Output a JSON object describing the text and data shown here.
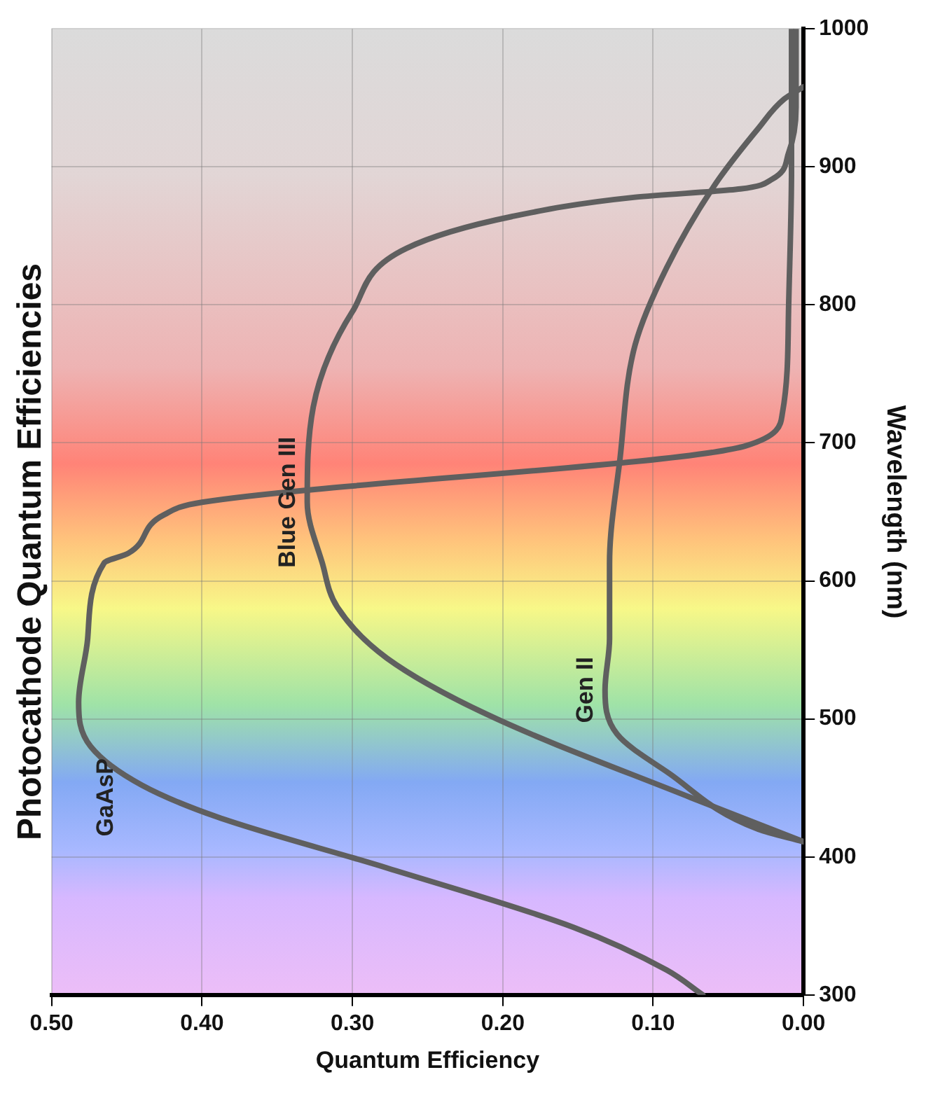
{
  "chart_data": {
    "type": "line",
    "title": "Photocathode Quantum Efficiencies",
    "xlabel": "Quantum Efficiency",
    "ylabel": "Wavelength (nm)",
    "xlim": [
      0.5,
      0
    ],
    "xticks": [
      {
        "value": 0.5,
        "label": "0.50"
      },
      {
        "value": 0.4,
        "label": "0.40"
      },
      {
        "value": 0.3,
        "label": "0.30"
      },
      {
        "value": 0.2,
        "label": "0.20"
      },
      {
        "value": 0.1,
        "label": "0.10"
      },
      {
        "value": 0,
        "label": "0.00"
      }
    ],
    "ylim": [
      300,
      1000
    ],
    "yticks": [
      300,
      400,
      500,
      600,
      700,
      800,
      900,
      1000
    ],
    "grid": true,
    "marker": "none",
    "line_style": "solid",
    "series": [
      {
        "name": "GaAsP",
        "color": "#5f5f5f",
        "x": [
          0.067,
          0.091,
          0.153,
          0.277,
          0.39,
          0.44,
          0.474,
          0.482,
          0.476,
          0.465,
          0.449,
          0.425,
          0.4,
          0.038,
          0.014,
          0.01,
          0.008,
          0.008
        ],
        "values": [
          300,
          318,
          349,
          392,
          429,
          452,
          480,
          512,
          558,
          613,
          620,
          648,
          657,
          698,
          722,
          795,
          900,
          1000
        ]
      },
      {
        "name": "Blue Gen III",
        "color": "#5f5f5f",
        "x": [
          0,
          0.075,
          0.21,
          0.277,
          0.31,
          0.32,
          0.33,
          0.326,
          0.3,
          0.264,
          0.194,
          0.112,
          0.042,
          0.021,
          0.01,
          0.005,
          0.005
        ],
        "values": [
          411,
          443,
          503,
          544,
          581,
          613,
          657,
          726,
          795,
          841,
          864,
          878,
          884,
          891,
          910,
          943,
          1000
        ]
      },
      {
        "name": "Gen II",
        "color": "#5f5f5f",
        "x": [
          0,
          0.03,
          0.09,
          0.124,
          0.132,
          0.129,
          0.129,
          0.122,
          0.112,
          0.091,
          0.059,
          0.03,
          0.013,
          0
        ],
        "values": [
          411,
          420,
          461,
          489,
          521,
          558,
          613,
          689,
          771,
          827,
          887,
          928,
          949,
          958
        ]
      }
    ]
  }
}
